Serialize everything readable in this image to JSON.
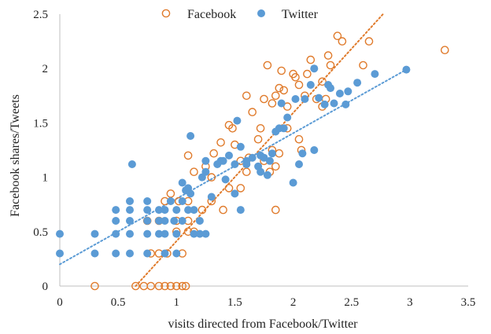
{
  "chart_data": {
    "type": "scatter",
    "xlabel": "visits directed from Facebook/Twitter",
    "ylabel": "Facebook shares/Tweets",
    "xlim": [
      0,
      3.5
    ],
    "ylim": [
      0,
      2.5
    ],
    "xticks": [
      "0",
      "0.5",
      "1",
      "1.5",
      "2",
      "2.5",
      "3",
      "3.5"
    ],
    "yticks": [
      "0",
      "0.5",
      "1",
      "1.5",
      "2",
      "2.5"
    ],
    "legend_position": "top",
    "grid": false,
    "series": [
      {
        "name": "Facebook",
        "marker": "hollow-circle",
        "color": "#e07b2c",
        "trendline": {
          "type": "linear",
          "from": [
            0.65,
            0
          ],
          "to": [
            2.77,
            2.5
          ]
        },
        "points": [
          [
            0.3,
            0
          ],
          [
            0.65,
            0
          ],
          [
            0.72,
            0
          ],
          [
            0.78,
            0
          ],
          [
            0.85,
            0
          ],
          [
            0.9,
            0
          ],
          [
            0.95,
            0
          ],
          [
            1.0,
            0
          ],
          [
            1.05,
            0
          ],
          [
            1.08,
            0
          ],
          [
            0.78,
            0.3
          ],
          [
            0.85,
            0.3
          ],
          [
            0.92,
            0.3
          ],
          [
            1.05,
            0.3
          ],
          [
            1.0,
            0.5
          ],
          [
            1.1,
            0.5
          ],
          [
            1.15,
            0.5
          ],
          [
            0.75,
            0.6
          ],
          [
            0.85,
            0.6
          ],
          [
            1.0,
            0.6
          ],
          [
            1.1,
            0.6
          ],
          [
            0.9,
            0.78
          ],
          [
            1.02,
            0.78
          ],
          [
            1.1,
            0.78
          ],
          [
            0.95,
            0.85
          ],
          [
            1.22,
            0.7
          ],
          [
            1.3,
            0.78
          ],
          [
            1.4,
            0.7
          ],
          [
            1.45,
            0.9
          ],
          [
            1.55,
            0.9
          ],
          [
            1.85,
            0.7
          ],
          [
            1.1,
            1.2
          ],
          [
            1.15,
            1.05
          ],
          [
            1.25,
            1.1
          ],
          [
            1.3,
            1.0
          ],
          [
            1.32,
            1.22
          ],
          [
            1.38,
            1.32
          ],
          [
            1.45,
            1.48
          ],
          [
            1.48,
            1.45
          ],
          [
            1.5,
            1.3
          ],
          [
            1.55,
            1.15
          ],
          [
            1.6,
            1.05
          ],
          [
            1.62,
            1.18
          ],
          [
            1.7,
            1.35
          ],
          [
            1.72,
            1.45
          ],
          [
            1.75,
            1.15
          ],
          [
            1.8,
            1.05
          ],
          [
            1.82,
            1.25
          ],
          [
            1.85,
            1.1
          ],
          [
            1.88,
            1.22
          ],
          [
            1.65,
            1.6
          ],
          [
            1.6,
            1.75
          ],
          [
            1.75,
            1.72
          ],
          [
            1.82,
            1.68
          ],
          [
            1.85,
            1.75
          ],
          [
            1.88,
            1.82
          ],
          [
            1.92,
            1.8
          ],
          [
            1.95,
            1.65
          ],
          [
            1.78,
            2.03
          ],
          [
            1.9,
            1.98
          ],
          [
            2.0,
            1.95
          ],
          [
            2.02,
            1.92
          ],
          [
            2.05,
            1.85
          ],
          [
            2.1,
            1.75
          ],
          [
            2.12,
            1.95
          ],
          [
            2.15,
            2.08
          ],
          [
            2.2,
            1.72
          ],
          [
            2.25,
            1.65
          ],
          [
            2.3,
            2.12
          ],
          [
            2.32,
            2.03
          ],
          [
            2.38,
            2.3
          ],
          [
            2.42,
            2.25
          ],
          [
            2.25,
            1.88
          ],
          [
            2.05,
            1.35
          ],
          [
            2.07,
            1.25
          ],
          [
            2.6,
            2.03
          ],
          [
            2.65,
            2.25
          ],
          [
            3.3,
            2.17
          ],
          [
            1.95,
            1.45
          ],
          [
            2.28,
            1.72
          ]
        ]
      },
      {
        "name": "Twitter",
        "marker": "filled-circle",
        "color": "#5b9bd5",
        "trendline": {
          "type": "linear",
          "from": [
            0,
            0.2
          ],
          "to": [
            2.97,
            1.99
          ]
        },
        "points": [
          [
            0,
            0.3
          ],
          [
            0,
            0.48
          ],
          [
            0.3,
            0.3
          ],
          [
            0.3,
            0.48
          ],
          [
            0.48,
            0.3
          ],
          [
            0.48,
            0.48
          ],
          [
            0.48,
            0.6
          ],
          [
            0.48,
            0.7
          ],
          [
            0.6,
            0.3
          ],
          [
            0.6,
            0.48
          ],
          [
            0.6,
            0.6
          ],
          [
            0.6,
            0.7
          ],
          [
            0.6,
            0.78
          ],
          [
            0.62,
            1.12
          ],
          [
            0.75,
            0.3
          ],
          [
            0.75,
            0.48
          ],
          [
            0.75,
            0.6
          ],
          [
            0.75,
            0.7
          ],
          [
            0.75,
            0.78
          ],
          [
            0.85,
            0.48
          ],
          [
            0.85,
            0.6
          ],
          [
            0.85,
            0.7
          ],
          [
            0.9,
            0.3
          ],
          [
            0.9,
            0.48
          ],
          [
            0.9,
            0.6
          ],
          [
            0.9,
            0.7
          ],
          [
            0.95,
            0.78
          ],
          [
            0.98,
            0.6
          ],
          [
            1.0,
            0.3
          ],
          [
            1.0,
            0.48
          ],
          [
            1.0,
            0.7
          ],
          [
            1.05,
            0.6
          ],
          [
            1.05,
            0.78
          ],
          [
            1.05,
            0.95
          ],
          [
            1.08,
            0.88
          ],
          [
            1.1,
            0.9
          ],
          [
            1.1,
            0.7
          ],
          [
            1.12,
            0.85
          ],
          [
            1.12,
            1.38
          ],
          [
            1.15,
            0.48
          ],
          [
            1.15,
            0.7
          ],
          [
            1.2,
            0.48
          ],
          [
            1.2,
            0.6
          ],
          [
            1.22,
            1.0
          ],
          [
            1.25,
            0.48
          ],
          [
            1.25,
            1.05
          ],
          [
            1.25,
            1.15
          ],
          [
            1.3,
            0.82
          ],
          [
            1.35,
            1.12
          ],
          [
            1.38,
            1.15
          ],
          [
            1.4,
            1.15
          ],
          [
            1.42,
            0.98
          ],
          [
            1.45,
            1.2
          ],
          [
            1.5,
            0.85
          ],
          [
            1.5,
            1.12
          ],
          [
            1.52,
            1.52
          ],
          [
            1.55,
            1.28
          ],
          [
            1.55,
            0.7
          ],
          [
            1.6,
            1.12
          ],
          [
            1.6,
            1.15
          ],
          [
            1.65,
            1.18
          ],
          [
            1.7,
            1.1
          ],
          [
            1.72,
            1.05
          ],
          [
            1.72,
            1.2
          ],
          [
            1.75,
            1.18
          ],
          [
            1.78,
            1.02
          ],
          [
            1.8,
            1.15
          ],
          [
            1.82,
            1.22
          ],
          [
            1.85,
            1.42
          ],
          [
            1.88,
            1.45
          ],
          [
            1.9,
            1.68
          ],
          [
            1.92,
            1.45
          ],
          [
            1.95,
            1.55
          ],
          [
            2.0,
            0.95
          ],
          [
            2.02,
            1.72
          ],
          [
            2.05,
            1.12
          ],
          [
            2.08,
            1.22
          ],
          [
            2.1,
            1.72
          ],
          [
            2.15,
            1.85
          ],
          [
            2.18,
            1.25
          ],
          [
            2.22,
            1.73
          ],
          [
            2.27,
            1.67
          ],
          [
            2.3,
            1.85
          ],
          [
            2.32,
            1.82
          ],
          [
            2.35,
            1.68
          ],
          [
            2.4,
            1.77
          ],
          [
            2.45,
            1.67
          ],
          [
            2.47,
            1.79
          ],
          [
            2.55,
            1.87
          ],
          [
            2.7,
            1.95
          ],
          [
            2.97,
            1.99
          ],
          [
            2.18,
            2.0
          ]
        ]
      }
    ]
  }
}
